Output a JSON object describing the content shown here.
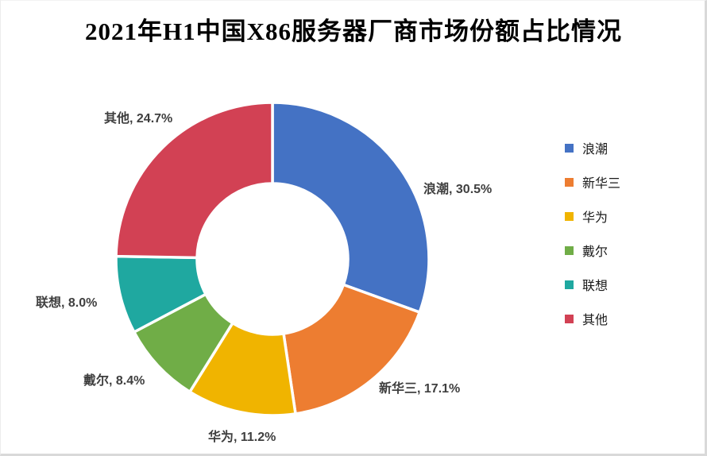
{
  "page": {
    "background": "#ffffff",
    "frame_shadow_color": "#d9d9d9"
  },
  "title": "2021年H1中国X86服务器厂商市场份额占比情况",
  "chart_data": {
    "type": "pie",
    "subtype": "donut",
    "title": "2021年H1中国X86服务器厂商市场份额占比情况",
    "categories": [
      "浪潮",
      "新华三",
      "华为",
      "戴尔",
      "联想",
      "其他"
    ],
    "values": [
      30.5,
      17.1,
      11.2,
      8.4,
      8.0,
      24.7
    ],
    "unit": "percent",
    "colors": [
      "#4472C4",
      "#ED7D31",
      "#F0B400",
      "#70AD47",
      "#1FA8A0",
      "#D24154"
    ],
    "data_labels": [
      "浪潮, 30.5%",
      "新华三, 17.1%",
      "华为, 11.2%",
      "戴尔, 8.4%",
      "联想, 8.0%",
      "其他, 24.7%"
    ],
    "label_color": "#3F3F3F",
    "legend_position": "right",
    "start_angle_deg": 0,
    "direction": "clockwise",
    "donut_hole_ratio": 0.48,
    "slice_gap_stroke": "#FFFFFF"
  },
  "legend": {
    "items": [
      {
        "label": "浪潮",
        "color": "#4472C4"
      },
      {
        "label": "新华三",
        "color": "#ED7D31"
      },
      {
        "label": "华为",
        "color": "#F0B400"
      },
      {
        "label": "戴尔",
        "color": "#70AD47"
      },
      {
        "label": "联想",
        "color": "#1FA8A0"
      },
      {
        "label": "其他",
        "color": "#D24154"
      }
    ]
  }
}
